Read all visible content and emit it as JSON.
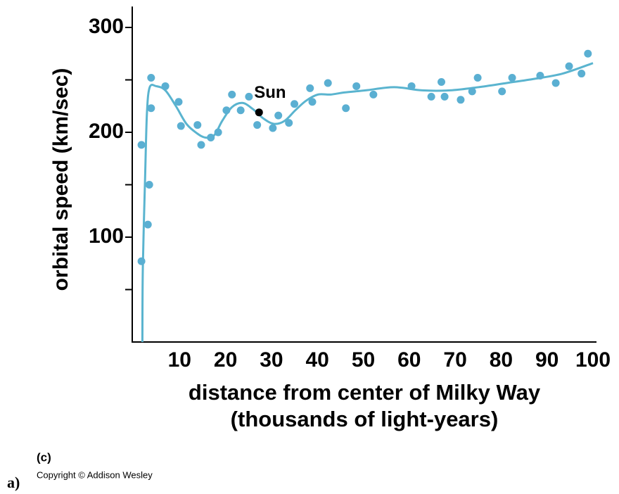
{
  "chart_data": {
    "type": "scatter",
    "ylabel": "orbital speed (km/sec)",
    "xlabel": [
      "distance from center of Milky Way",
      "(thousands of light-years)"
    ],
    "xlim": [
      0,
      100
    ],
    "xticks": [
      10,
      20,
      30,
      40,
      50,
      60,
      70,
      80,
      90,
      100
    ],
    "ylim": [
      0,
      320
    ],
    "yticks": [
      100,
      200,
      300
    ],
    "yminor_ticks": [
      50,
      150,
      250
    ],
    "points": {
      "color": "#5aafd2",
      "x": [
        1.7,
        1.7,
        3.1,
        3.4,
        3.8,
        3.8,
        6.9,
        9.8,
        10.3,
        13.9,
        14.7,
        16.8,
        18.4,
        20.2,
        21.4,
        23.3,
        25.1,
        26.9,
        30.3,
        31.5,
        33.8,
        35,
        38.4,
        38.9,
        42.3,
        46.2,
        48.5,
        52.2,
        60.5,
        64.8,
        67,
        67.7,
        71.2,
        73.7,
        74.9,
        80.2,
        82.4,
        88.5,
        91.9,
        94.8,
        97.5,
        98.9
      ],
      "y": [
        77,
        188,
        112,
        150,
        252,
        223,
        244,
        229,
        206,
        207,
        188,
        195,
        200,
        221,
        236,
        221,
        234,
        207,
        204,
        216,
        209,
        227,
        242,
        229,
        247,
        223,
        244,
        236,
        244,
        234,
        248,
        234,
        231,
        239,
        252,
        239,
        252,
        254,
        247,
        263,
        256,
        275
      ]
    },
    "curve": {
      "color": "#5ab4cf",
      "x": [
        1.9,
        2,
        2.5,
        2.9,
        3.5,
        4.9,
        6.9,
        9.2,
        11.5,
        13.8,
        15.6,
        17.5,
        19.3,
        21.4,
        23.7,
        26,
        28.3,
        30.6,
        32.9,
        35.2,
        37.5,
        40.1,
        42.9,
        45.9,
        50.5,
        56.7,
        62.8,
        68.9,
        75,
        81.2,
        87.3,
        93.4,
        100
      ],
      "y": [
        0,
        71,
        158,
        219,
        243,
        244,
        240,
        225,
        208,
        199,
        195,
        197,
        211,
        224,
        228,
        222,
        213,
        208,
        211,
        221,
        230,
        236,
        236,
        238,
        240,
        243,
        240,
        240,
        243,
        247,
        251,
        256,
        266
      ]
    },
    "sun": {
      "x": 27.3,
      "y": 219,
      "label": "Sun",
      "color": "#000000"
    },
    "panel_label": "(c)",
    "copyright": "Copyright © Addison Wesley",
    "figure_label": "a)"
  }
}
